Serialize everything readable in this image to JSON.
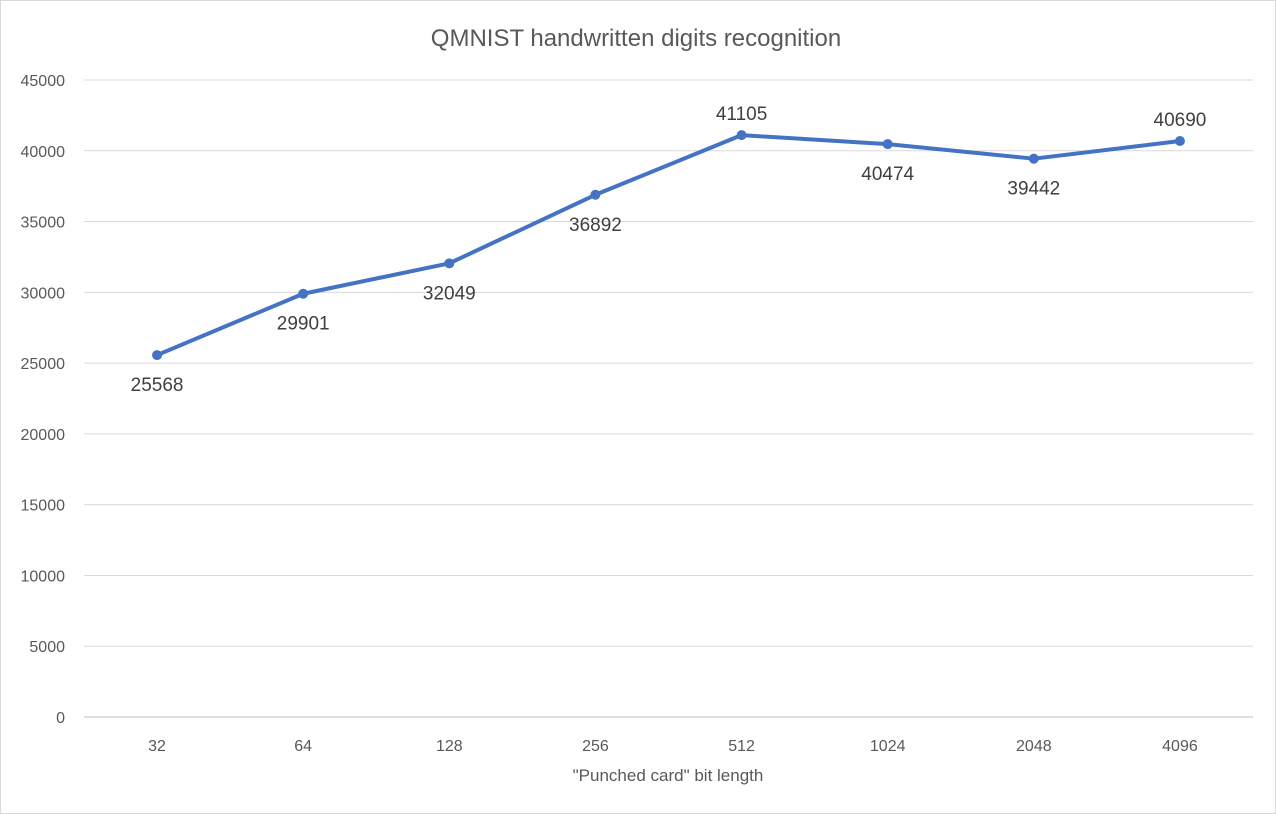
{
  "chart_data": {
    "type": "line",
    "title": "QMNIST handwritten digits recognition",
    "xlabel": "\"Punched card\" bit length",
    "ylabel": "",
    "categories": [
      "32",
      "64",
      "128",
      "256",
      "512",
      "1024",
      "2048",
      "4096"
    ],
    "series": [
      {
        "values": [
          25568,
          29901,
          32049,
          36892,
          41105,
          40474,
          39442,
          40690
        ],
        "color": "#4472c4",
        "label_positions": [
          "below",
          "below",
          "below",
          "below",
          "above",
          "below",
          "below",
          "above"
        ]
      }
    ],
    "ylim": [
      0,
      45000
    ],
    "yticks": [
      0,
      5000,
      10000,
      15000,
      20000,
      25000,
      30000,
      35000,
      40000,
      45000
    ],
    "grid": true,
    "legend": "none",
    "data_labels": true
  }
}
